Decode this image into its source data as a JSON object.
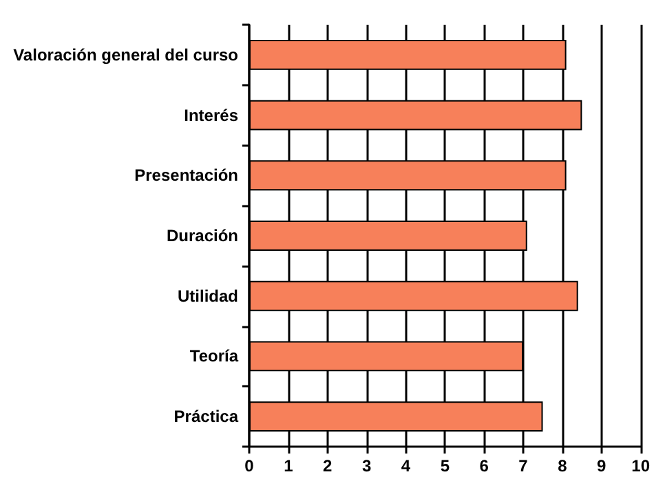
{
  "chart_data": {
    "type": "bar",
    "orientation": "horizontal",
    "categories": [
      "Valoración general del curso",
      "Interés",
      "Presentación",
      "Duración",
      "Utilidad",
      "Teoría",
      "Práctica"
    ],
    "values": [
      8.1,
      8.5,
      8.1,
      7.1,
      8.4,
      7.0,
      7.5
    ],
    "color": "#f7805a",
    "xlim": [
      0,
      10
    ],
    "xticks": [
      0,
      1,
      2,
      3,
      4,
      5,
      6,
      7,
      8,
      9,
      10
    ],
    "grid": "x"
  }
}
